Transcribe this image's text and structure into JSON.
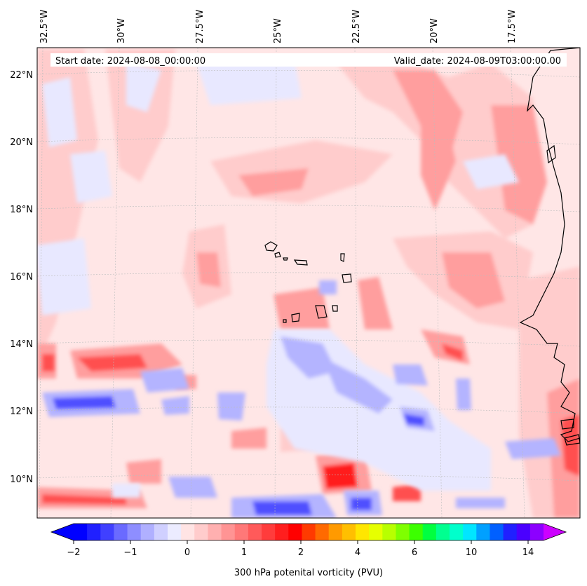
{
  "map": {
    "start_label": "Start date: 2024-08-08_00:00:00",
    "valid_label": "Valid_date: 2024-08-09T03:00:00.00",
    "lon_labels": [
      "32.5°W",
      "30°W",
      "27.5°W",
      "25°W",
      "22.5°W",
      "20°W",
      "17.5°W"
    ],
    "lat_labels": [
      "22°N",
      "20°N",
      "18°N",
      "16°N",
      "14°N",
      "12°N",
      "10°N"
    ],
    "colorbar": {
      "label": "300 hPa potenital vorticity (PVU)",
      "ticks": [
        "−2",
        "−1",
        "0",
        "1",
        "2",
        "4",
        "6",
        "10",
        "14"
      ],
      "colors": [
        "#0000ff",
        "#2020ff",
        "#4040ff",
        "#6a6aff",
        "#8e8eff",
        "#b0b0ff",
        "#d0d0ff",
        "#ececff",
        "#ffe4e4",
        "#ffcccc",
        "#ffb0b0",
        "#ff9494",
        "#ff7878",
        "#ff5a5a",
        "#ff3c3c",
        "#ff1e1e",
        "#ff0000",
        "#ff3a00",
        "#ff6a00",
        "#ff9a00",
        "#ffbf00",
        "#ffe600",
        "#e6ff00",
        "#b8ff00",
        "#7fff00",
        "#3cff00",
        "#00ff40",
        "#00ff90",
        "#00ffcc",
        "#00e6ff",
        "#00a0ff",
        "#0060ff",
        "#2020ff",
        "#4a00ff",
        "#8c00ff"
      ],
      "under_color": "#0000ff",
      "over_color": "#cc00ff"
    },
    "colors": {
      "background_pv": "#ffe6e6",
      "light_pink": "#ffcccc",
      "mid_pink": "#ff9e9e",
      "strong_red": "#ff5050",
      "red": "#ff1a1a",
      "light_blue": "#e8e8ff",
      "mid_blue": "#b4b4ff",
      "strong_blue": "#5050ff",
      "coast": "#000000",
      "grid": "#bdbdbd"
    }
  }
}
